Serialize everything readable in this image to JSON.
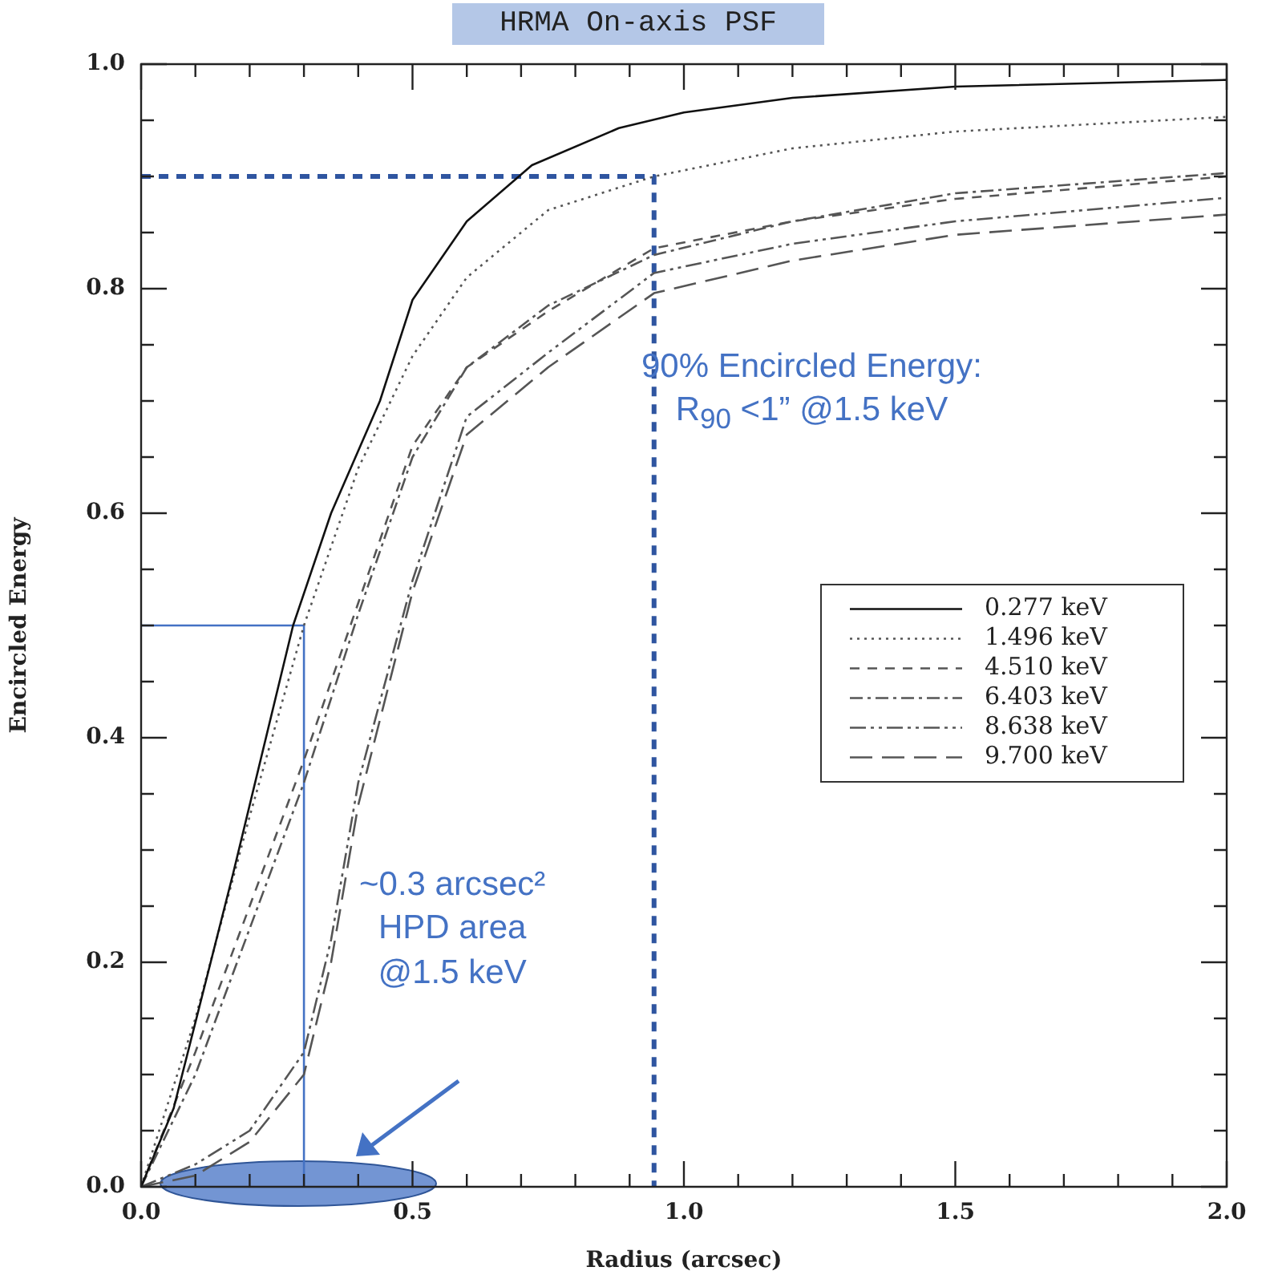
{
  "chart_data": {
    "type": "line",
    "title": "HRMA On-axis PSF",
    "xlabel": "Radius (arcsec)",
    "ylabel": "Encircled Energy",
    "xlim": [
      0,
      2
    ],
    "ylim": [
      0,
      1
    ],
    "xticks": [
      {
        "value": 0,
        "label": "0.0"
      },
      {
        "value": 0.1,
        "label": null
      },
      {
        "value": 0.2,
        "label": null
      },
      {
        "value": 0.3,
        "label": null
      },
      {
        "value": 0.4,
        "label": null
      },
      {
        "value": 0.5,
        "label": "0.5"
      },
      {
        "value": 0.6,
        "label": null
      },
      {
        "value": 0.7,
        "label": null
      },
      {
        "value": 0.8,
        "label": null
      },
      {
        "value": 0.9,
        "label": null
      },
      {
        "value": 1,
        "label": "1.0"
      },
      {
        "value": 1.1,
        "label": null
      },
      {
        "value": 1.2,
        "label": null
      },
      {
        "value": 1.3,
        "label": null
      },
      {
        "value": 1.4,
        "label": null
      },
      {
        "value": 1.5,
        "label": "1.5"
      },
      {
        "value": 1.6,
        "label": null
      },
      {
        "value": 1.7,
        "label": null
      },
      {
        "value": 1.8,
        "label": null
      },
      {
        "value": 1.9,
        "label": null
      },
      {
        "value": 2,
        "label": "2.0"
      }
    ],
    "yticks": [
      {
        "value": 0,
        "label": "0.0"
      },
      {
        "value": 0.05,
        "label": null
      },
      {
        "value": 0.1,
        "label": null
      },
      {
        "value": 0.15,
        "label": null
      },
      {
        "value": 0.2,
        "label": "0.2"
      },
      {
        "value": 0.25,
        "label": null
      },
      {
        "value": 0.3,
        "label": null
      },
      {
        "value": 0.35,
        "label": null
      },
      {
        "value": 0.4,
        "label": "0.4"
      },
      {
        "value": 0.45,
        "label": null
      },
      {
        "value": 0.5,
        "label": null
      },
      {
        "value": 0.55,
        "label": null
      },
      {
        "value": 0.6,
        "label": "0.6"
      },
      {
        "value": 0.65,
        "label": null
      },
      {
        "value": 0.7,
        "label": null
      },
      {
        "value": 0.75,
        "label": null
      },
      {
        "value": 0.8,
        "label": "0.8"
      },
      {
        "value": 0.85,
        "label": null
      },
      {
        "value": 0.9,
        "label": null
      },
      {
        "value": 0.95,
        "label": null
      },
      {
        "value": 1,
        "label": "1.0"
      }
    ],
    "legend": "right",
    "grid": false,
    "marker": "none",
    "series": [
      {
        "name": "0.277 keV",
        "color": "#111111",
        "line_style": "solid",
        "x": [
          0,
          0.06,
          0.17,
          0.28,
          0.35,
          0.44,
          0.5,
          0.6,
          0.72,
          0.88,
          1.0,
          1.2,
          1.5,
          2.0
        ],
        "values": [
          0,
          0.07,
          0.28,
          0.5,
          0.6,
          0.7,
          0.79,
          0.86,
          0.91,
          0.943,
          0.957,
          0.97,
          0.98,
          0.986
        ]
      },
      {
        "name": "1.496 keV",
        "color": "#555555",
        "line_style": "dotted",
        "x": [
          0,
          0.1,
          0.2,
          0.3,
          0.4,
          0.5,
          0.6,
          0.75,
          0.945,
          1.2,
          1.5,
          2.0
        ],
        "values": [
          0,
          0.15,
          0.33,
          0.5,
          0.64,
          0.74,
          0.81,
          0.87,
          0.9,
          0.925,
          0.94,
          0.953
        ]
      },
      {
        "name": "4.510 keV",
        "color": "#555555",
        "line_style": "dashed",
        "x": [
          0,
          0.1,
          0.2,
          0.3,
          0.4,
          0.5,
          0.6,
          0.75,
          0.945,
          1.2,
          1.5,
          2.0
        ],
        "values": [
          0,
          0.12,
          0.25,
          0.38,
          0.52,
          0.66,
          0.73,
          0.78,
          0.836,
          0.86,
          0.88,
          0.9
        ]
      },
      {
        "name": "6.403 keV",
        "color": "#555555",
        "line_style": "dashdot",
        "x": [
          0,
          0.1,
          0.2,
          0.3,
          0.4,
          0.5,
          0.6,
          0.75,
          0.945,
          1.2,
          1.5,
          2.0
        ],
        "values": [
          0,
          0.1,
          0.23,
          0.36,
          0.51,
          0.65,
          0.73,
          0.785,
          0.83,
          0.86,
          0.885,
          0.903
        ]
      },
      {
        "name": "8.638 keV",
        "color": "#555555",
        "line_style": "dashdotdot",
        "x": [
          0,
          0.1,
          0.2,
          0.3,
          0.35,
          0.4,
          0.5,
          0.6,
          0.75,
          0.945,
          1.2,
          1.5,
          2.0
        ],
        "values": [
          0,
          0.02,
          0.05,
          0.12,
          0.22,
          0.36,
          0.54,
          0.686,
          0.743,
          0.814,
          0.84,
          0.86,
          0.881
        ]
      },
      {
        "name": "9.700 keV",
        "color": "#555555",
        "line_style": "longdash",
        "x": [
          0,
          0.1,
          0.2,
          0.3,
          0.35,
          0.4,
          0.5,
          0.6,
          0.75,
          0.945,
          1.2,
          1.5,
          2.0
        ],
        "values": [
          0,
          0.01,
          0.04,
          0.1,
          0.2,
          0.34,
          0.53,
          0.67,
          0.73,
          0.796,
          0.825,
          0.848,
          0.866
        ]
      },
      {
        "color": "#2f55a0",
        "line_style": "dashed",
        "x": [
          0,
          0.945,
          0.945
        ],
        "values": [
          0.9,
          0.9,
          0
        ]
      },
      {
        "color": "#4472c4",
        "line_style": "solid",
        "x": [
          0,
          0.3,
          0.3
        ],
        "values": [
          0.5,
          0.5,
          0
        ]
      }
    ],
    "annotations": [
      "90% Encircled Energy:\nR$_{90}$ <1” @1.5 keV",
      "~0.3 arcsec²\nHPD area\n@1.5 keV"
    ]
  }
}
